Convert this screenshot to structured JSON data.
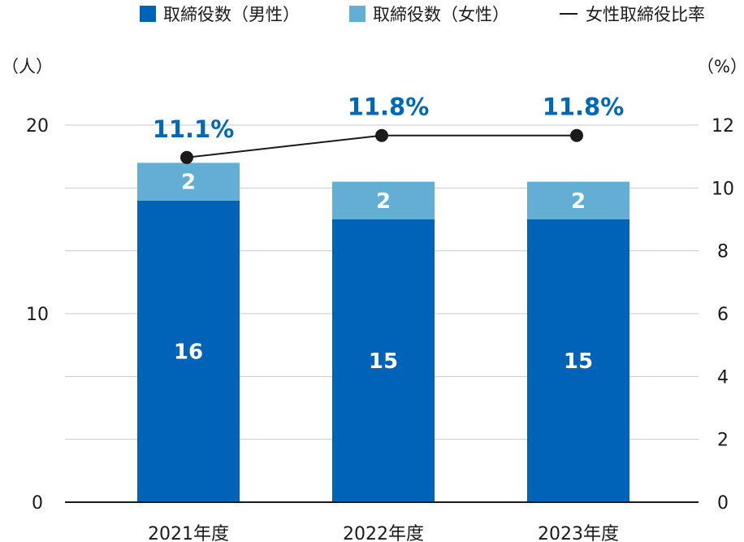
{
  "legend": {
    "male": "取締役数（男性）",
    "female": "取締役数（女性）",
    "ratio": "女性取締役比率"
  },
  "units": {
    "left": "（人）",
    "right": "（%）"
  },
  "colors": {
    "male": "#0163b8",
    "female": "#62aed4",
    "ratio_line": "#1a1a1a",
    "ratio_label": "#0168b7",
    "grid": "#c8c8c8"
  },
  "chart_data": {
    "type": "bar",
    "stacked": true,
    "categories": [
      "2021年度",
      "2022年度",
      "2023年度"
    ],
    "series": [
      {
        "name": "取締役数（男性）",
        "values": [
          16,
          15,
          15
        ]
      },
      {
        "name": "取締役数（女性）",
        "values": [
          2,
          2,
          2
        ]
      }
    ],
    "line_series": {
      "name": "女性取締役比率",
      "values": [
        11.1,
        11.8,
        11.8
      ],
      "labels": [
        "11.1%",
        "11.8%",
        "11.8%"
      ],
      "axis": "right"
    },
    "ylim": [
      0,
      20
    ],
    "yticks": [
      0,
      10,
      20
    ],
    "y2lim": [
      0,
      13
    ],
    "y2ticks": [
      0,
      2,
      4,
      6,
      8,
      10,
      12
    ],
    "grid": true,
    "legend_position": "top"
  }
}
